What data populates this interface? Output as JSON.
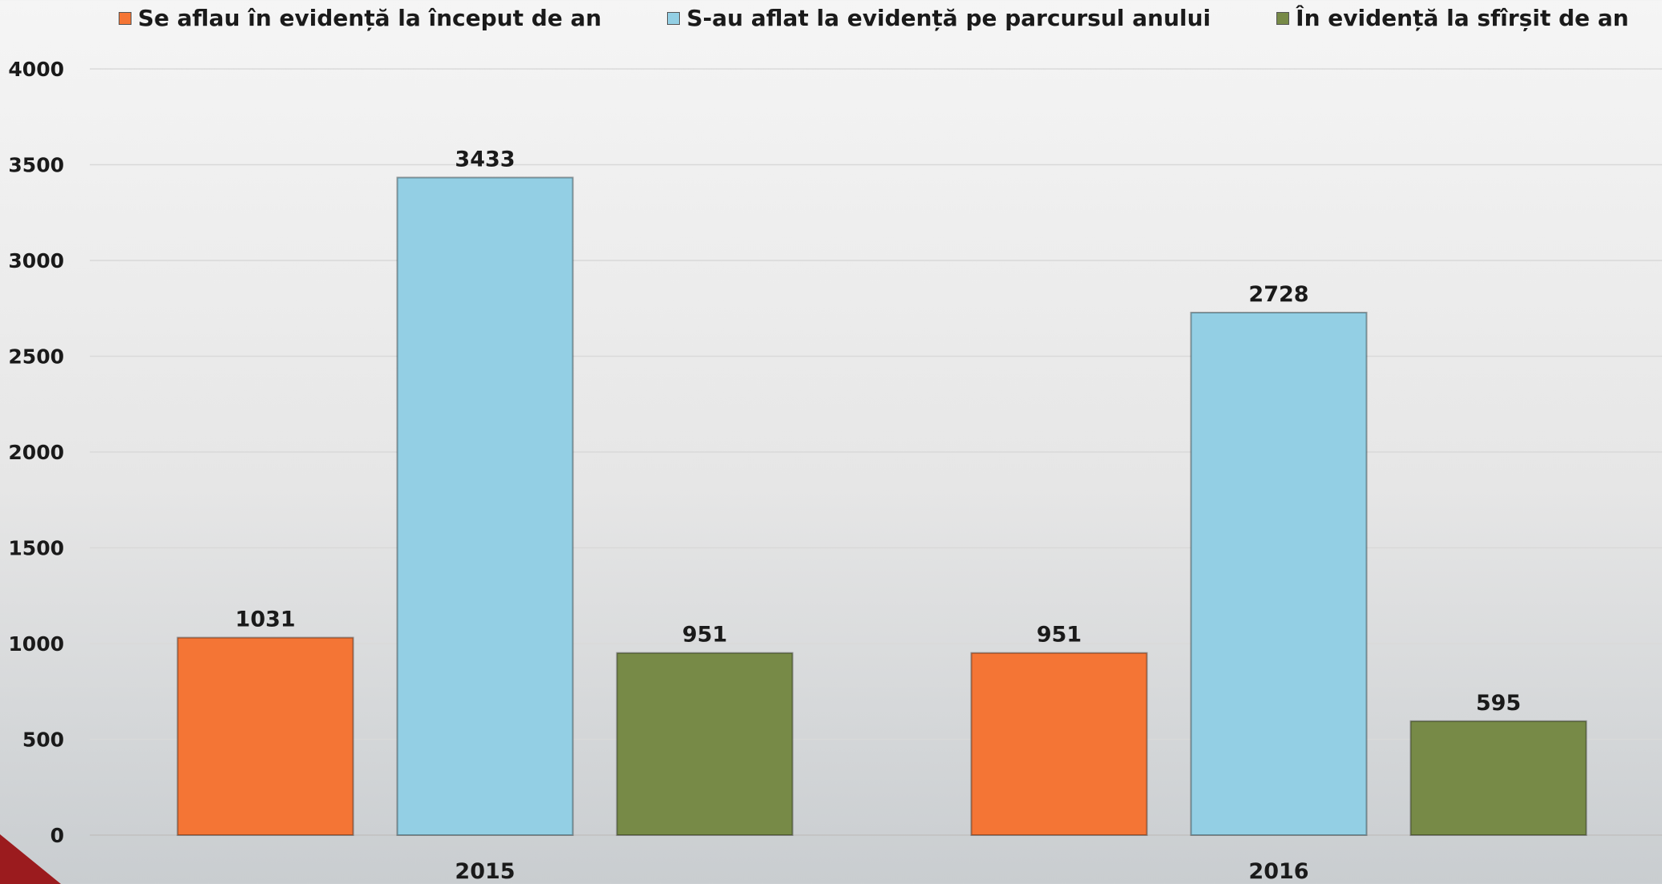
{
  "chart_data": {
    "type": "bar",
    "categories": [
      "2015",
      "2016"
    ],
    "series": [
      {
        "name": "Se aflau în evidență la început de an",
        "color": "#f47535",
        "values": [
          1031,
          951
        ]
      },
      {
        "name": "S-au aflat la evidență pe parcursul anului",
        "color": "#93cfe4",
        "values": [
          3433,
          2728
        ]
      },
      {
        "name": "În evidență la sfîrșit de an",
        "color": "#778a47",
        "values": [
          951,
          595
        ]
      }
    ],
    "ylim": [
      0,
      4000
    ],
    "yticks": [
      "0",
      "500",
      "1000",
      "1500",
      "2000",
      "2500",
      "3000",
      "3500",
      "4000"
    ],
    "grid": true,
    "legend_position": "top"
  }
}
